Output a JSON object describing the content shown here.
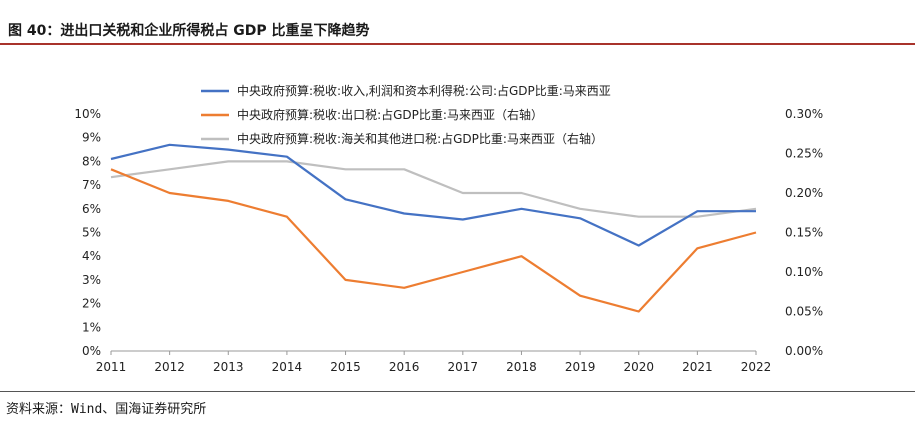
{
  "title": "图 40：进出口关税和企业所得税占 GDP 比重呈下降趋势",
  "source": "资料来源：Wind、国海证券研究所",
  "chart_data": {
    "type": "line",
    "categories": [
      "2011",
      "2012",
      "2013",
      "2014",
      "2015",
      "2016",
      "2017",
      "2018",
      "2019",
      "2020",
      "2021",
      "2022"
    ],
    "y_left": {
      "range": [
        0,
        10
      ],
      "ticks": [
        "0%",
        "1%",
        "2%",
        "3%",
        "4%",
        "5%",
        "6%",
        "7%",
        "8%",
        "9%",
        "10%"
      ]
    },
    "y_right": {
      "range": [
        0,
        0.3
      ],
      "ticks": [
        "0.00%",
        "0.05%",
        "0.10%",
        "0.15%",
        "0.20%",
        "0.25%",
        "0.30%"
      ]
    },
    "grid": false,
    "legend_position": "top",
    "series": [
      {
        "name": "中央政府预算:税收:收入,利润和资本利得税:公司:占GDP比重:马来西亚",
        "axis": "left",
        "color": "#4472c4",
        "values": [
          8.1,
          8.7,
          8.5,
          8.2,
          6.4,
          5.8,
          5.55,
          6.0,
          5.6,
          4.45,
          5.9,
          5.9
        ]
      },
      {
        "name": "中央政府预算:税收:出口税:占GDP比重:马来西亚（右轴）",
        "axis": "right",
        "color": "#ed7d31",
        "values": [
          0.23,
          0.2,
          0.19,
          0.17,
          0.09,
          0.08,
          0.1,
          0.12,
          0.07,
          0.05,
          0.13,
          0.15
        ]
      },
      {
        "name": "中央政府预算:税收:海关和其他进口税:占GDP比重:马来西亚（右轴）",
        "axis": "right",
        "color": "#bfbfbf",
        "values": [
          0.22,
          0.23,
          0.24,
          0.24,
          0.23,
          0.23,
          0.2,
          0.2,
          0.18,
          0.17,
          0.17,
          0.18
        ]
      }
    ]
  }
}
